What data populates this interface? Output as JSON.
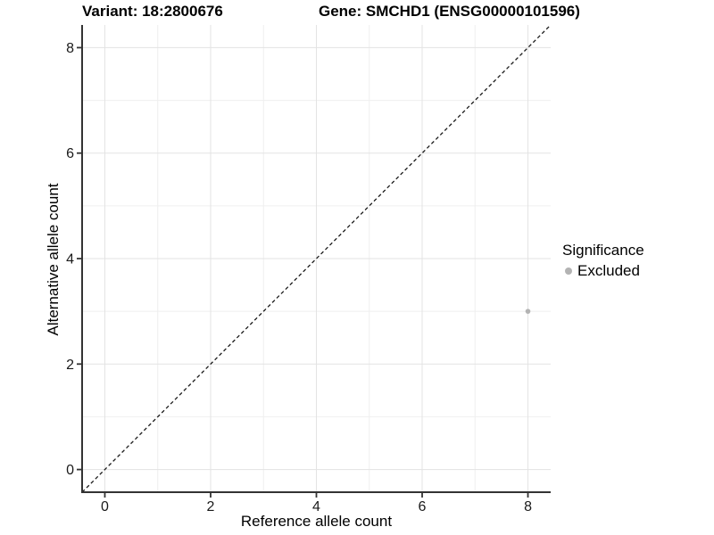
{
  "chart_data": {
    "type": "scatter",
    "title_left": "Variant: 18:2800676",
    "title_right": "Gene: SMCHD1 (ENSG00000101596)",
    "xlabel": "Reference allele count",
    "ylabel": "Alternative allele count",
    "xlim": [
      -0.43,
      8.43
    ],
    "ylim": [
      -0.43,
      8.43
    ],
    "x_ticks": [
      0,
      2,
      4,
      6,
      8
    ],
    "y_ticks": [
      0,
      2,
      4,
      6,
      8
    ],
    "x_minor_ticks": [
      1,
      3,
      5,
      7
    ],
    "y_minor_ticks": [
      1,
      3,
      5,
      7
    ],
    "grid": true,
    "points": [
      {
        "x": 8,
        "y": 3,
        "significance": "Excluded"
      }
    ],
    "reference_line": {
      "type": "identity",
      "style": "dashed",
      "x1": -0.43,
      "y1": -0.43,
      "x2": 8.43,
      "y2": 8.43
    },
    "legend": {
      "title": "Significance",
      "position": "right",
      "items": [
        {
          "label": "Excluded",
          "color": "#b3b3b3"
        }
      ]
    },
    "colors": {
      "point": "#b3b3b3",
      "grid_major": "#e3e3e3",
      "grid_minor": "#efefef",
      "axis": "#333333",
      "text": "#1a1a1a",
      "identity_line": "#1a1a1a",
      "background": "#ffffff"
    }
  }
}
